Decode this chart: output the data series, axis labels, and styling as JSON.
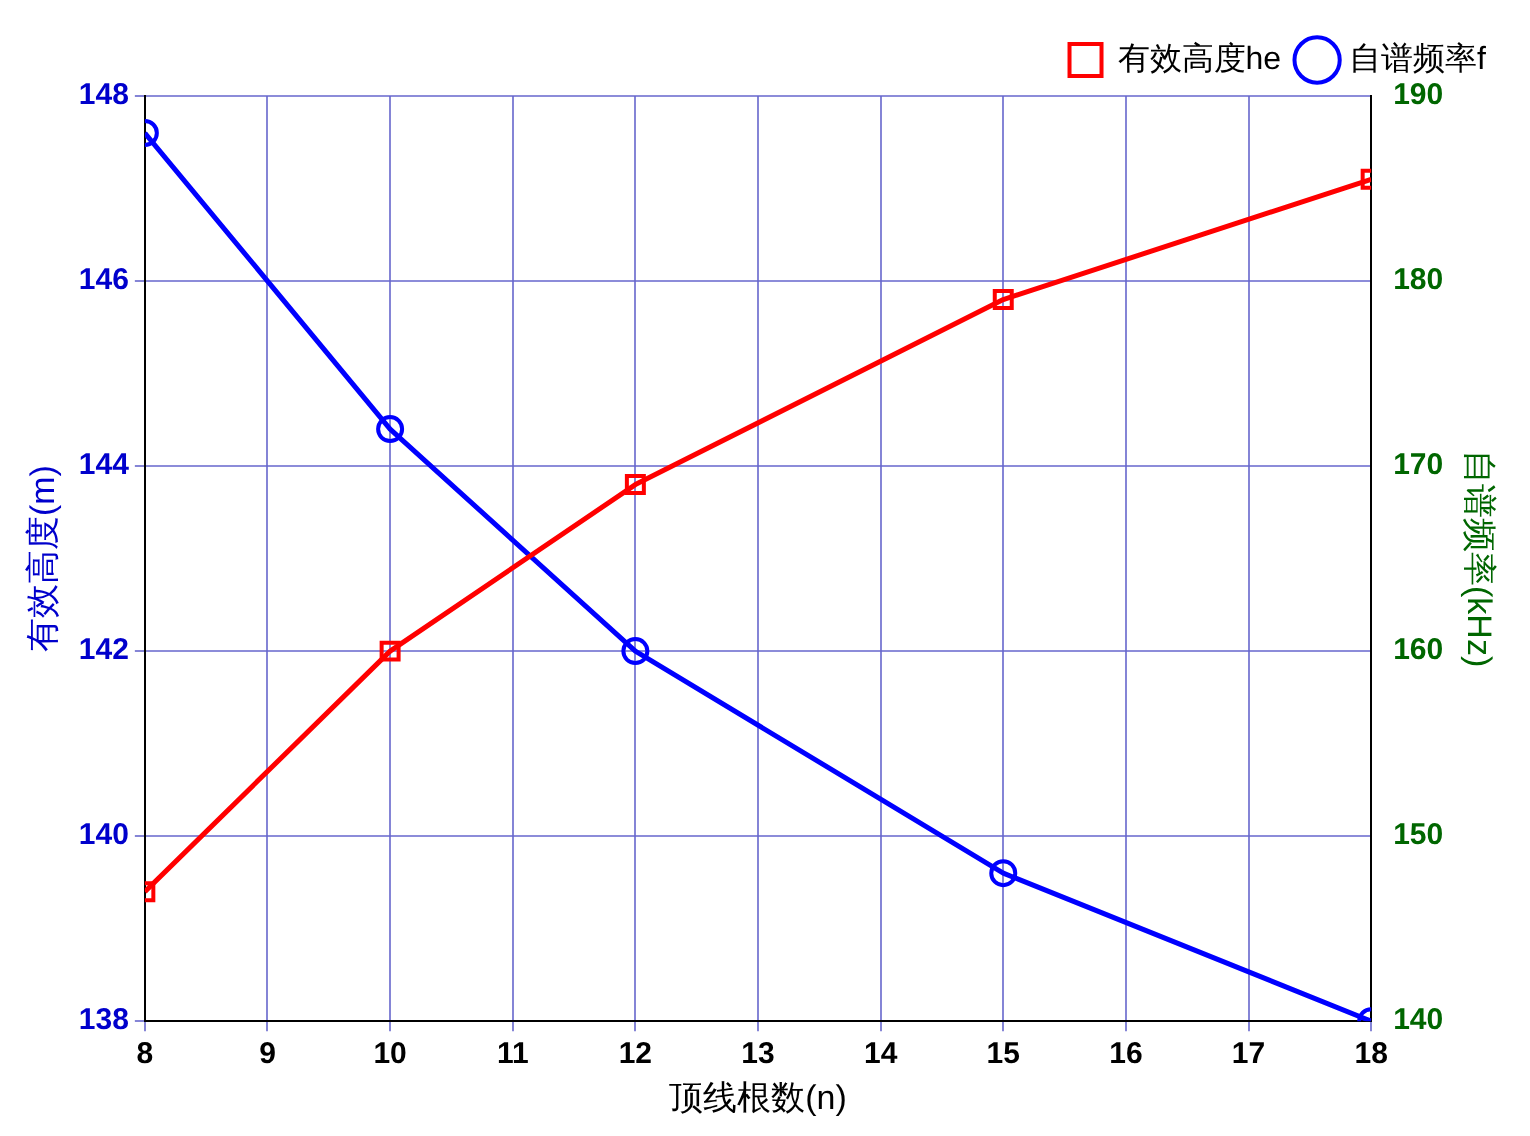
{
  "chart_data": {
    "type": "line",
    "xlabel": "顶线根数(n)",
    "ylabel": "有效高度(m)",
    "y2label": "自谱频率(kHz)",
    "x": [
      8,
      10,
      12,
      15,
      18
    ],
    "series": [
      {
        "name": "有效高度he",
        "color": "#ff0000",
        "values": [
          139.4,
          142.0,
          143.8,
          145.8,
          147.1
        ],
        "marker": "square"
      },
      {
        "name": "自谱频率f",
        "color": "#0000ff",
        "values": [
          188,
          172,
          160,
          148,
          140
        ],
        "marker": "circle",
        "axis": "y2"
      }
    ],
    "xlim": [
      8,
      18
    ],
    "xticks": [
      8,
      9,
      10,
      11,
      12,
      13,
      14,
      15,
      16,
      17,
      18
    ],
    "ylim": [
      138,
      148
    ],
    "yticks": [
      138,
      140,
      142,
      144,
      146,
      148
    ],
    "y2lim": [
      140,
      190
    ],
    "y2ticks": [
      140,
      150,
      160,
      170,
      180,
      190
    ],
    "grid": true,
    "legend": "top right",
    "line_style": "solid"
  }
}
